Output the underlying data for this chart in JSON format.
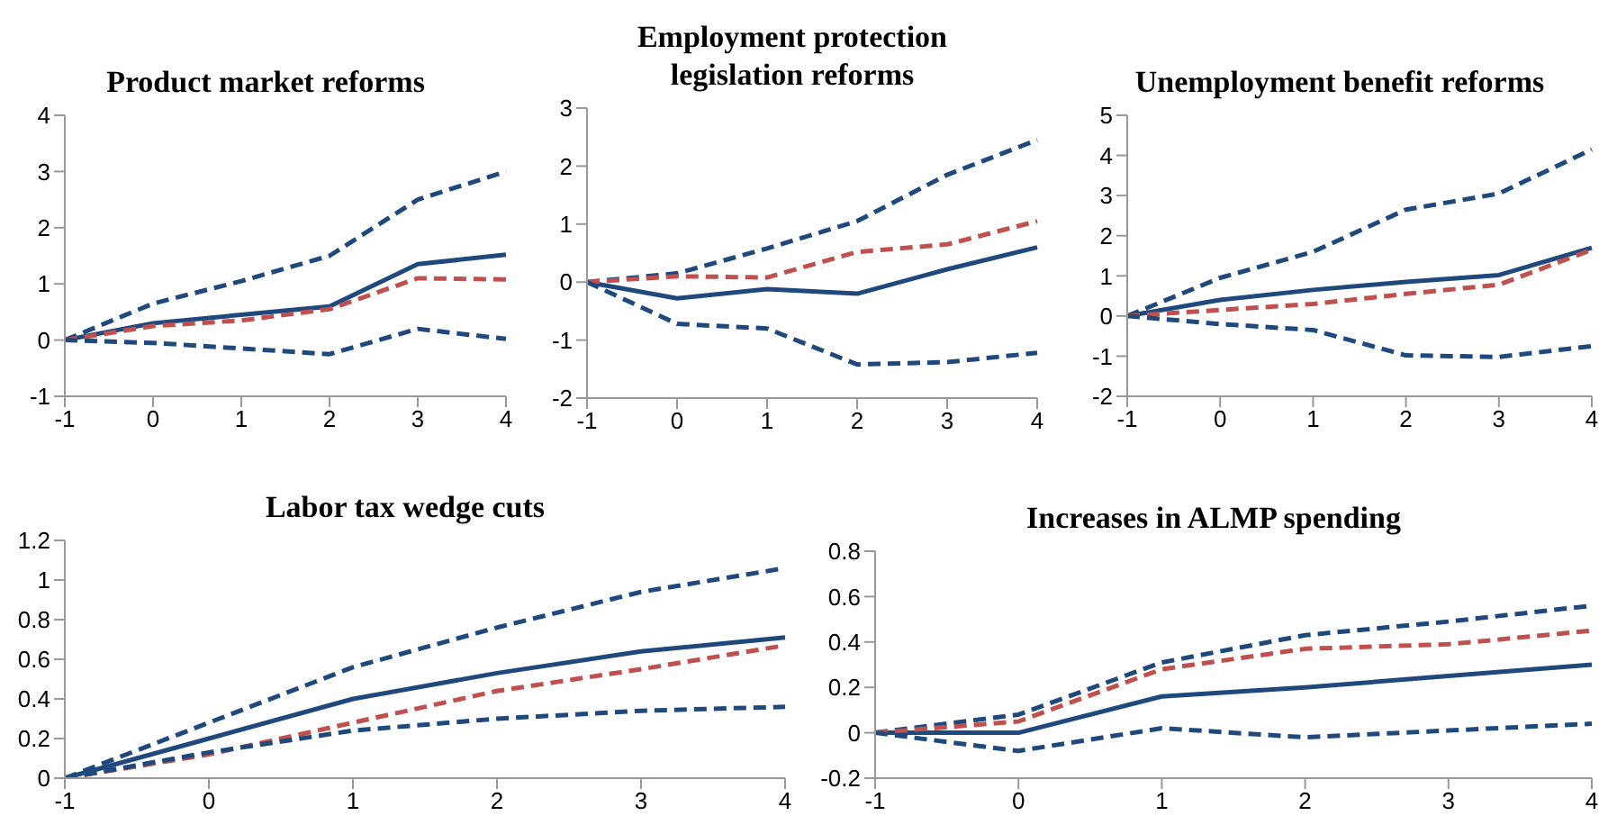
{
  "chart_data": [
    {
      "type": "line",
      "title": "Product market reforms",
      "categories": [
        "-1",
        "0",
        "1",
        "2",
        "3",
        "4"
      ],
      "ylim": [
        -1,
        4
      ],
      "yticks": [
        -1,
        0,
        1,
        2,
        3,
        4
      ],
      "grid": false,
      "legend": false,
      "marker": "none",
      "series": [
        {
          "color": "#1f497d",
          "line_style": "dashed",
          "values": [
            0,
            0.65,
            1.05,
            1.5,
            2.5,
            3.0
          ]
        },
        {
          "color": "#1f497d",
          "line_style": "solid",
          "values": [
            0,
            0.3,
            0.45,
            0.6,
            1.35,
            1.52
          ]
        },
        {
          "color": "#c0504d",
          "line_style": "dashed",
          "values": [
            0,
            0.25,
            0.35,
            0.55,
            1.1,
            1.08
          ]
        },
        {
          "color": "#1f497d",
          "line_style": "dashed",
          "values": [
            0,
            -0.05,
            -0.15,
            -0.25,
            0.2,
            0.02
          ]
        }
      ]
    },
    {
      "type": "line",
      "title": "Employment protection legislation reforms",
      "categories": [
        "-1",
        "0",
        "1",
        "2",
        "3",
        "4"
      ],
      "ylim": [
        -2,
        3
      ],
      "yticks": [
        -2,
        -1,
        0,
        1,
        2,
        3
      ],
      "grid": false,
      "legend": false,
      "marker": "none",
      "series": [
        {
          "color": "#1f497d",
          "line_style": "dashed",
          "values": [
            0,
            0.15,
            0.58,
            1.05,
            1.85,
            2.45
          ]
        },
        {
          "color": "#1f497d",
          "line_style": "solid",
          "values": [
            0,
            -0.28,
            -0.12,
            -0.2,
            0.22,
            0.6
          ]
        },
        {
          "color": "#c0504d",
          "line_style": "dashed",
          "values": [
            0,
            0.1,
            0.08,
            0.52,
            0.65,
            1.05
          ]
        },
        {
          "color": "#1f497d",
          "line_style": "dashed",
          "values": [
            0,
            -0.72,
            -0.8,
            -1.42,
            -1.38,
            -1.22
          ]
        }
      ]
    },
    {
      "type": "line",
      "title": "Unemployment benefit reforms",
      "categories": [
        "-1",
        "0",
        "1",
        "2",
        "3",
        "4"
      ],
      "ylim": [
        -2,
        5
      ],
      "yticks": [
        -2,
        -1,
        0,
        1,
        2,
        3,
        4,
        5
      ],
      "grid": false,
      "legend": false,
      "marker": "none",
      "series": [
        {
          "color": "#1f497d",
          "line_style": "dashed",
          "values": [
            0,
            0.95,
            1.6,
            2.65,
            3.05,
            4.15
          ]
        },
        {
          "color": "#1f497d",
          "line_style": "solid",
          "values": [
            0,
            0.4,
            0.65,
            0.85,
            1.02,
            1.7
          ]
        },
        {
          "color": "#c0504d",
          "line_style": "dashed",
          "values": [
            0,
            0.15,
            0.3,
            0.55,
            0.78,
            1.65
          ]
        },
        {
          "color": "#1f497d",
          "line_style": "dashed",
          "values": [
            0,
            -0.2,
            -0.35,
            -0.98,
            -1.02,
            -0.75
          ]
        }
      ]
    },
    {
      "type": "line",
      "title": "Labor tax wedge cuts",
      "categories": [
        "-1",
        "0",
        "1",
        "2",
        "3",
        "4"
      ],
      "ylim": [
        0,
        1.2
      ],
      "yticks": [
        0,
        0.2,
        0.4,
        0.6,
        0.8,
        1,
        1.2
      ],
      "grid": false,
      "legend": false,
      "marker": "none",
      "series": [
        {
          "color": "#1f497d",
          "line_style": "dashed",
          "values": [
            0,
            0.28,
            0.56,
            0.76,
            0.94,
            1.06
          ]
        },
        {
          "color": "#1f497d",
          "line_style": "solid",
          "values": [
            0,
            0.2,
            0.4,
            0.53,
            0.64,
            0.71
          ]
        },
        {
          "color": "#c0504d",
          "line_style": "dashed",
          "values": [
            0,
            0.12,
            0.28,
            0.44,
            0.55,
            0.67
          ]
        },
        {
          "color": "#1f497d",
          "line_style": "dashed",
          "values": [
            0,
            0.13,
            0.24,
            0.3,
            0.34,
            0.36
          ]
        }
      ]
    },
    {
      "type": "line",
      "title": "Increases in ALMP spending",
      "categories": [
        "-1",
        "0",
        "1",
        "2",
        "3",
        "4"
      ],
      "ylim": [
        -0.2,
        0.8
      ],
      "yticks": [
        -0.2,
        0,
        0.2,
        0.4,
        0.6,
        0.8
      ],
      "grid": false,
      "legend": false,
      "marker": "none",
      "series": [
        {
          "color": "#1f497d",
          "line_style": "dashed",
          "values": [
            0,
            0.08,
            0.31,
            0.43,
            0.49,
            0.56
          ]
        },
        {
          "color": "#1f497d",
          "line_style": "solid",
          "values": [
            0,
            0,
            0.16,
            0.2,
            0.25,
            0.3
          ]
        },
        {
          "color": "#c0504d",
          "line_style": "dashed",
          "values": [
            0,
            0.05,
            0.28,
            0.37,
            0.39,
            0.45
          ]
        },
        {
          "color": "#1f497d",
          "line_style": "dashed",
          "values": [
            0,
            -0.08,
            0.02,
            -0.02,
            0.01,
            0.04
          ]
        }
      ]
    }
  ]
}
